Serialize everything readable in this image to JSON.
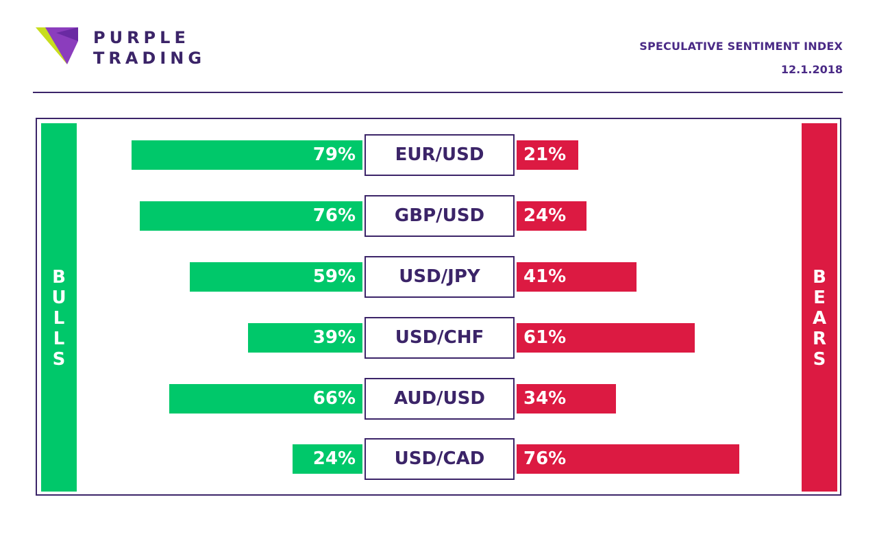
{
  "brand": {
    "line1": "PURPLE",
    "line2": "TRADING",
    "logo_icon": "purple-trading-logo-icon",
    "colors": {
      "purple": "#3b2468",
      "accent_purple": "#8b3dbd",
      "lime": "#c8dd1e"
    }
  },
  "header": {
    "title": "SPECULATIVE SENTIMENT INDEX",
    "date": "12.1.2018"
  },
  "sides": {
    "bulls": [
      "B",
      "U",
      "L",
      "L",
      "S"
    ],
    "bears": [
      "B",
      "E",
      "A",
      "R",
      "S"
    ]
  },
  "colors": {
    "bulls": "#00c86a",
    "bears": "#dc1a42",
    "frame": "#3b2468"
  },
  "chart_data": {
    "type": "bar",
    "categories": [
      "EUR/USD",
      "GBP/USD",
      "USD/JPY",
      "USD/CHF",
      "AUD/USD",
      "USD/CAD"
    ],
    "series": [
      {
        "values": [
          79,
          76,
          59,
          39,
          66,
          24
        ]
      },
      {
        "values": [
          21,
          24,
          41,
          61,
          34,
          76
        ]
      }
    ],
    "ylim": [
      0,
      100
    ],
    "bulls_labels": [
      "79%",
      "76%",
      "59%",
      "39%",
      "66%",
      "24%"
    ],
    "bears_labels": [
      "21%",
      "24%",
      "41%",
      "61%",
      "34%",
      "76%"
    ]
  }
}
